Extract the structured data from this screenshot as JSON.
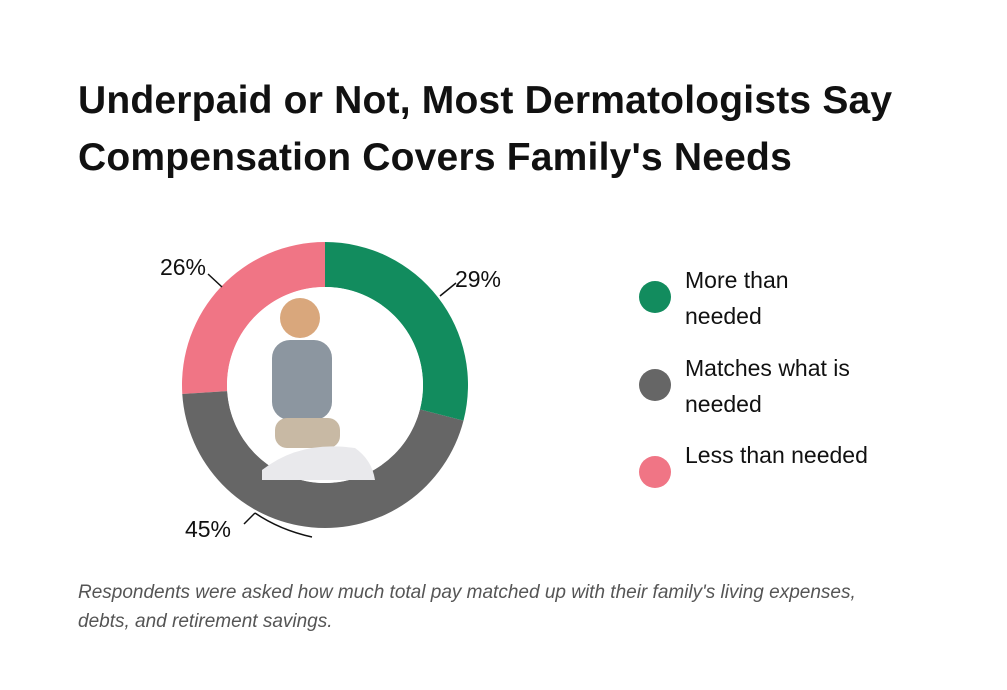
{
  "chart_data": {
    "type": "donut",
    "title": "Underpaid or Not, Most Dermatologists Say Compensation Covers Family's Needs",
    "note": "Respondents were asked how much total pay matched up with their family's living expenses, debts, and retirement savings.",
    "categories": [
      "More than needed",
      "Matches what is needed",
      "Less than needed"
    ],
    "values": [
      29,
      45,
      26
    ],
    "value_labels": [
      "29%",
      "45%",
      "26%"
    ],
    "colors": [
      "#128c5e",
      "#666666",
      "#f07585"
    ]
  }
}
